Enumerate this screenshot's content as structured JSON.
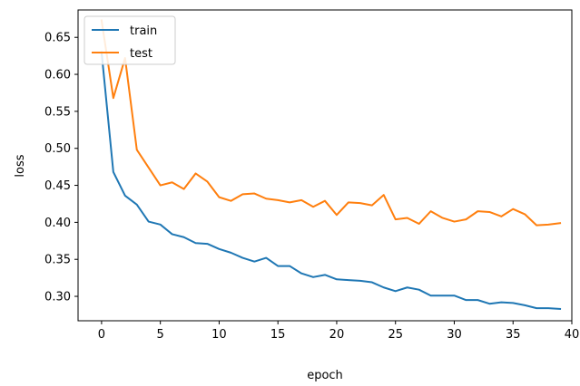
{
  "chart_data": {
    "type": "line",
    "xlabel": "epoch",
    "ylabel": "loss",
    "xlim": [
      -2,
      40
    ],
    "ylim": [
      0.267,
      0.687
    ],
    "xticks": [
      0,
      5,
      10,
      15,
      20,
      25,
      30,
      35,
      40
    ],
    "yticks": [
      0.3,
      0.35,
      0.4,
      0.45,
      0.5,
      0.55,
      0.6,
      0.65
    ],
    "grid": false,
    "legend_position": "top-left",
    "x": [
      0,
      1,
      2,
      3,
      4,
      5,
      6,
      7,
      8,
      9,
      10,
      11,
      12,
      13,
      14,
      15,
      16,
      17,
      18,
      19,
      20,
      21,
      22,
      23,
      24,
      25,
      26,
      27,
      28,
      29,
      30,
      31,
      32,
      33,
      34,
      35,
      36,
      37,
      38,
      39
    ],
    "series": [
      {
        "name": "train",
        "color": "#1f77b4",
        "values": [
          0.63,
          0.468,
          0.436,
          0.424,
          0.401,
          0.397,
          0.384,
          0.38,
          0.372,
          0.371,
          0.364,
          0.359,
          0.352,
          0.347,
          0.352,
          0.341,
          0.341,
          0.331,
          0.326,
          0.329,
          0.323,
          0.322,
          0.321,
          0.319,
          0.312,
          0.307,
          0.312,
          0.309,
          0.301,
          0.301,
          0.301,
          0.295,
          0.295,
          0.29,
          0.292,
          0.291,
          0.288,
          0.284,
          0.284,
          0.283
        ]
      },
      {
        "name": "test",
        "color": "#ff7f0e",
        "values": [
          0.673,
          0.568,
          0.622,
          0.498,
          0.474,
          0.45,
          0.454,
          0.445,
          0.466,
          0.455,
          0.434,
          0.429,
          0.438,
          0.439,
          0.432,
          0.43,
          0.427,
          0.43,
          0.421,
          0.429,
          0.41,
          0.427,
          0.426,
          0.423,
          0.437,
          0.404,
          0.406,
          0.398,
          0.415,
          0.406,
          0.401,
          0.404,
          0.415,
          0.414,
          0.408,
          0.418,
          0.411,
          0.396,
          0.397,
          0.399
        ]
      }
    ]
  }
}
